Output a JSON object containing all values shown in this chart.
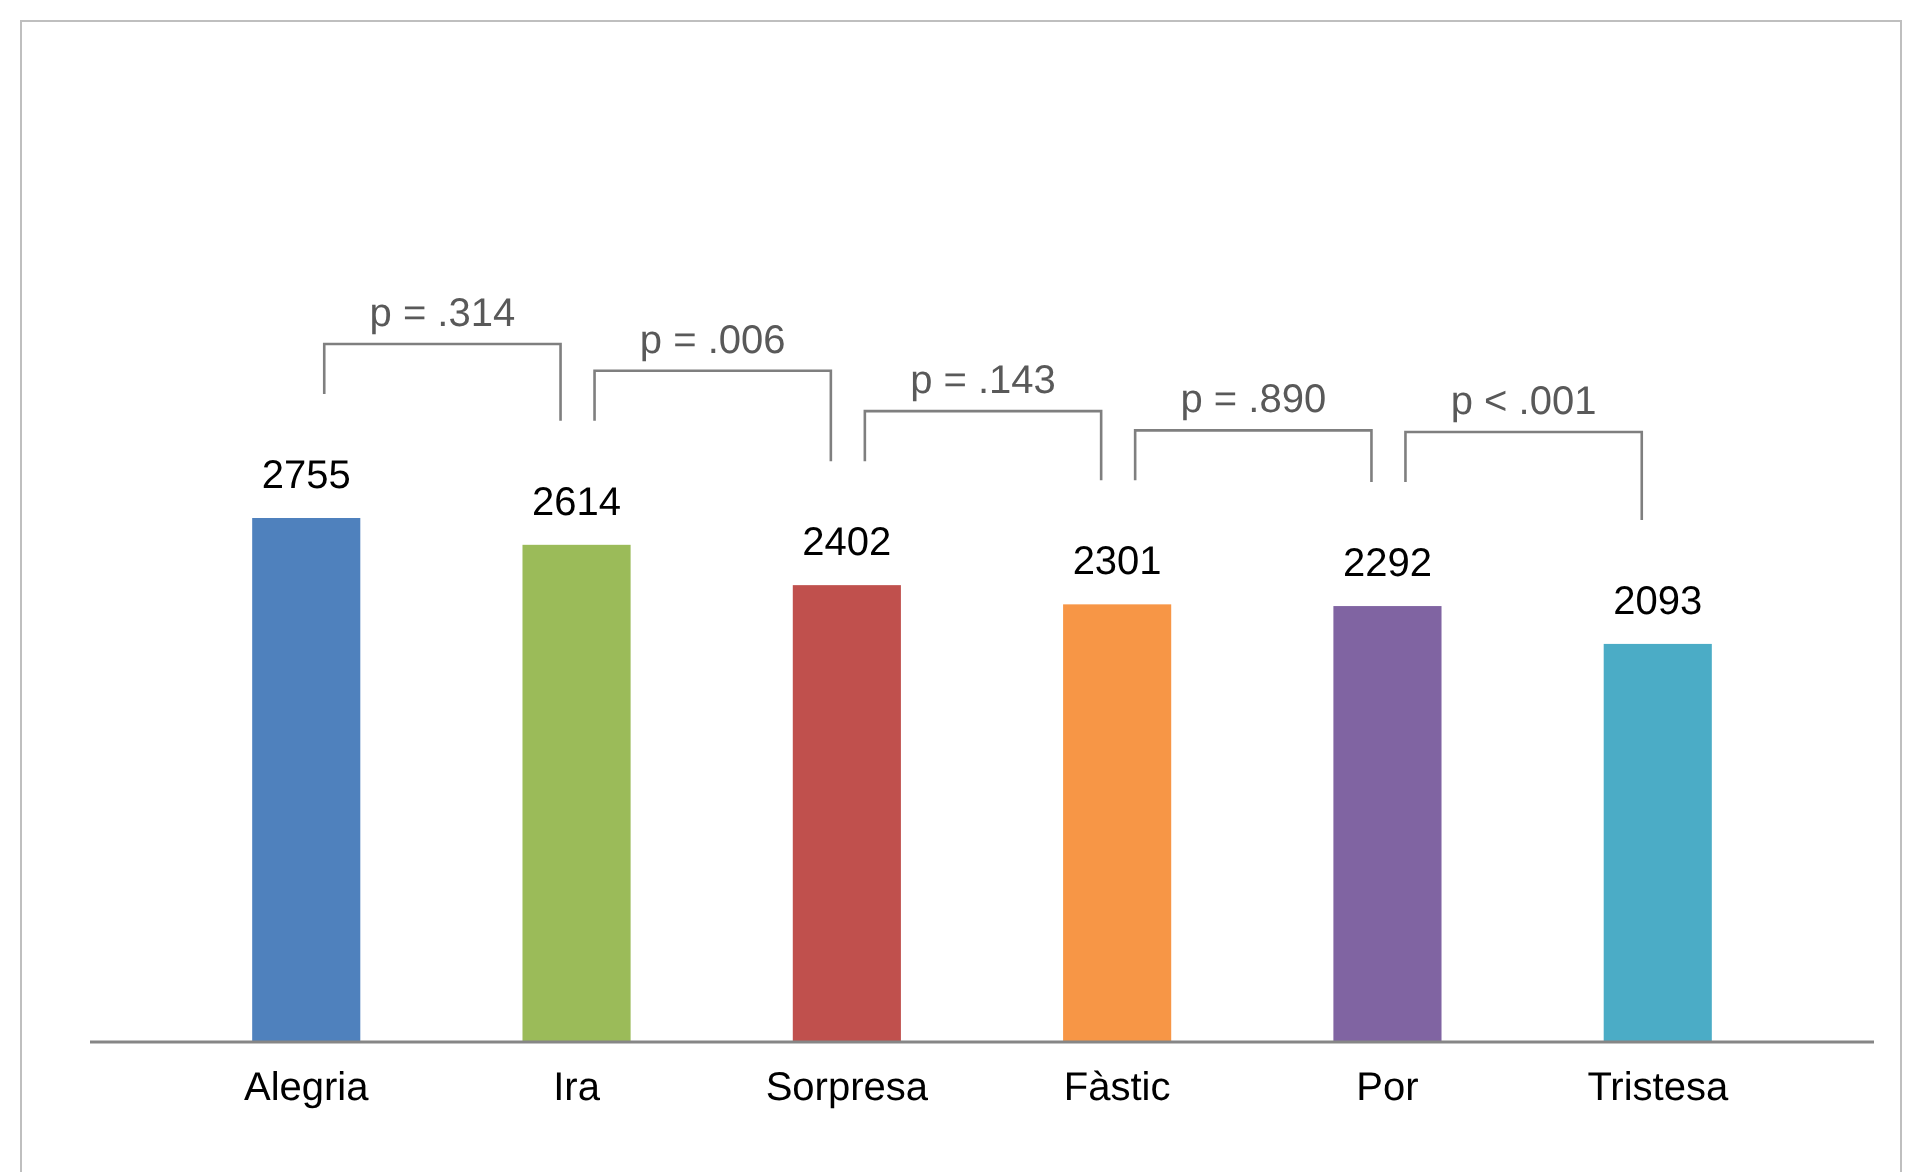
{
  "chart_data": {
    "type": "bar",
    "categories": [
      "Alegria",
      "Ira",
      "Sorpresa",
      "Fàstic",
      "Por",
      "Tristesa"
    ],
    "values": [
      2755,
      2614,
      2402,
      2301,
      2292,
      2093
    ],
    "colors": [
      "#4f81bd",
      "#9bbb59",
      "#c0504d",
      "#f79646",
      "#8064a2",
      "#4bacc6"
    ],
    "data_labels": true,
    "annotations": [
      "p = .314",
      "p = .006",
      "p = .143",
      "p = .890",
      "p < .001"
    ]
  }
}
